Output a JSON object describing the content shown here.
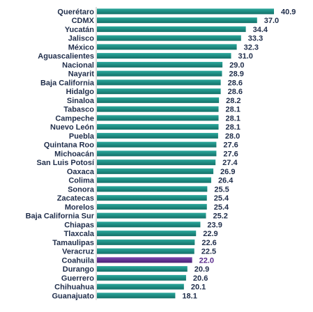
{
  "chart_data": {
    "type": "bar",
    "orientation": "horizontal",
    "categories": [
      "Querétaro",
      "CDMX",
      "Yucatán",
      "Jalisco",
      "México",
      "Aguascalientes",
      "Nacional",
      "Nayarit",
      "Baja California",
      "Hidalgo",
      "Sinaloa",
      "Tabasco",
      "Campeche",
      "Nuevo León",
      "Puebla",
      "Quintana Roo",
      "Michoacán",
      "San Luis Potosí",
      "Oaxaca",
      "Colima",
      "Sonora",
      "Zacatecas",
      "Morelos",
      "Baja California Sur",
      "Chiapas",
      "Tlaxcala",
      "Tamaulipas",
      "Veracruz",
      "Coahuila",
      "Durango",
      "Guerrero",
      "Chihuahua",
      "Guanajuato"
    ],
    "values": [
      40.9,
      37.0,
      34.4,
      33.3,
      32.3,
      31.0,
      29.0,
      28.9,
      28.6,
      28.6,
      28.2,
      28.1,
      28.1,
      28.1,
      28.0,
      27.6,
      27.6,
      27.4,
      26.9,
      26.4,
      25.5,
      25.4,
      25.4,
      25.2,
      23.9,
      22.9,
      22.6,
      22.5,
      22.0,
      20.9,
      20.6,
      20.1,
      18.1
    ],
    "value_labels": [
      "40.9",
      "37.0",
      "34.4",
      "33.3",
      "32.3",
      "31.0",
      "29.0",
      "28.9",
      "28.6",
      "28.6",
      "28.2",
      "28.1",
      "28.1",
      "28.1",
      "28.0",
      "27.6",
      "27.6",
      "27.4",
      "26.9",
      "26.4",
      "25.5",
      "25.4",
      "25.4",
      "25.2",
      "23.9",
      "22.9",
      "22.6",
      "22.5",
      "22.0",
      "20.9",
      "20.6",
      "20.1",
      "18.1"
    ],
    "highlight": "Coahuila",
    "colors": {
      "bar": "#1a8a80",
      "bar_highlight": "#5a2c8c",
      "label": "#1f2d4a",
      "value_label_highlight": "#5a2c8c",
      "axis": "#b8b8b8"
    },
    "xlim": [
      0,
      40.9
    ],
    "grid": false,
    "legend": "none"
  }
}
